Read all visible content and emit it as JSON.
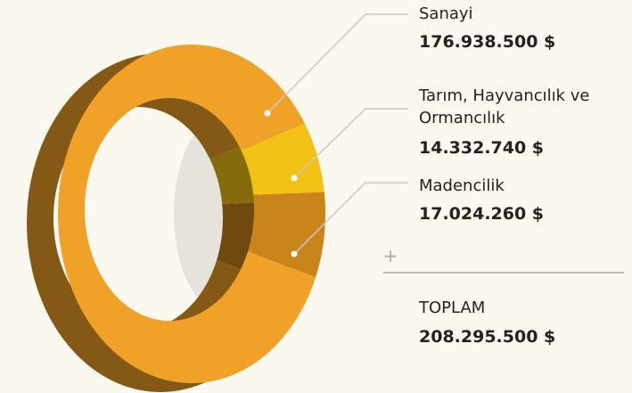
{
  "chart_data": {
    "type": "pie",
    "categories": [
      "Sanayi",
      "Tarım, Hayvancılık ve Ormancılık",
      "Madencilik"
    ],
    "values": [
      176938500,
      14332740,
      17024260
    ],
    "value_labels": [
      "176.938.500 $",
      "14.332.740 $",
      "17.024.260 $"
    ],
    "colors": [
      "#f0a128",
      "#f2c316",
      "#c9841a"
    ],
    "operator": "+",
    "total": {
      "name": "TOPLAM",
      "value": 208295500,
      "value_label": "208.295.500 $"
    }
  }
}
